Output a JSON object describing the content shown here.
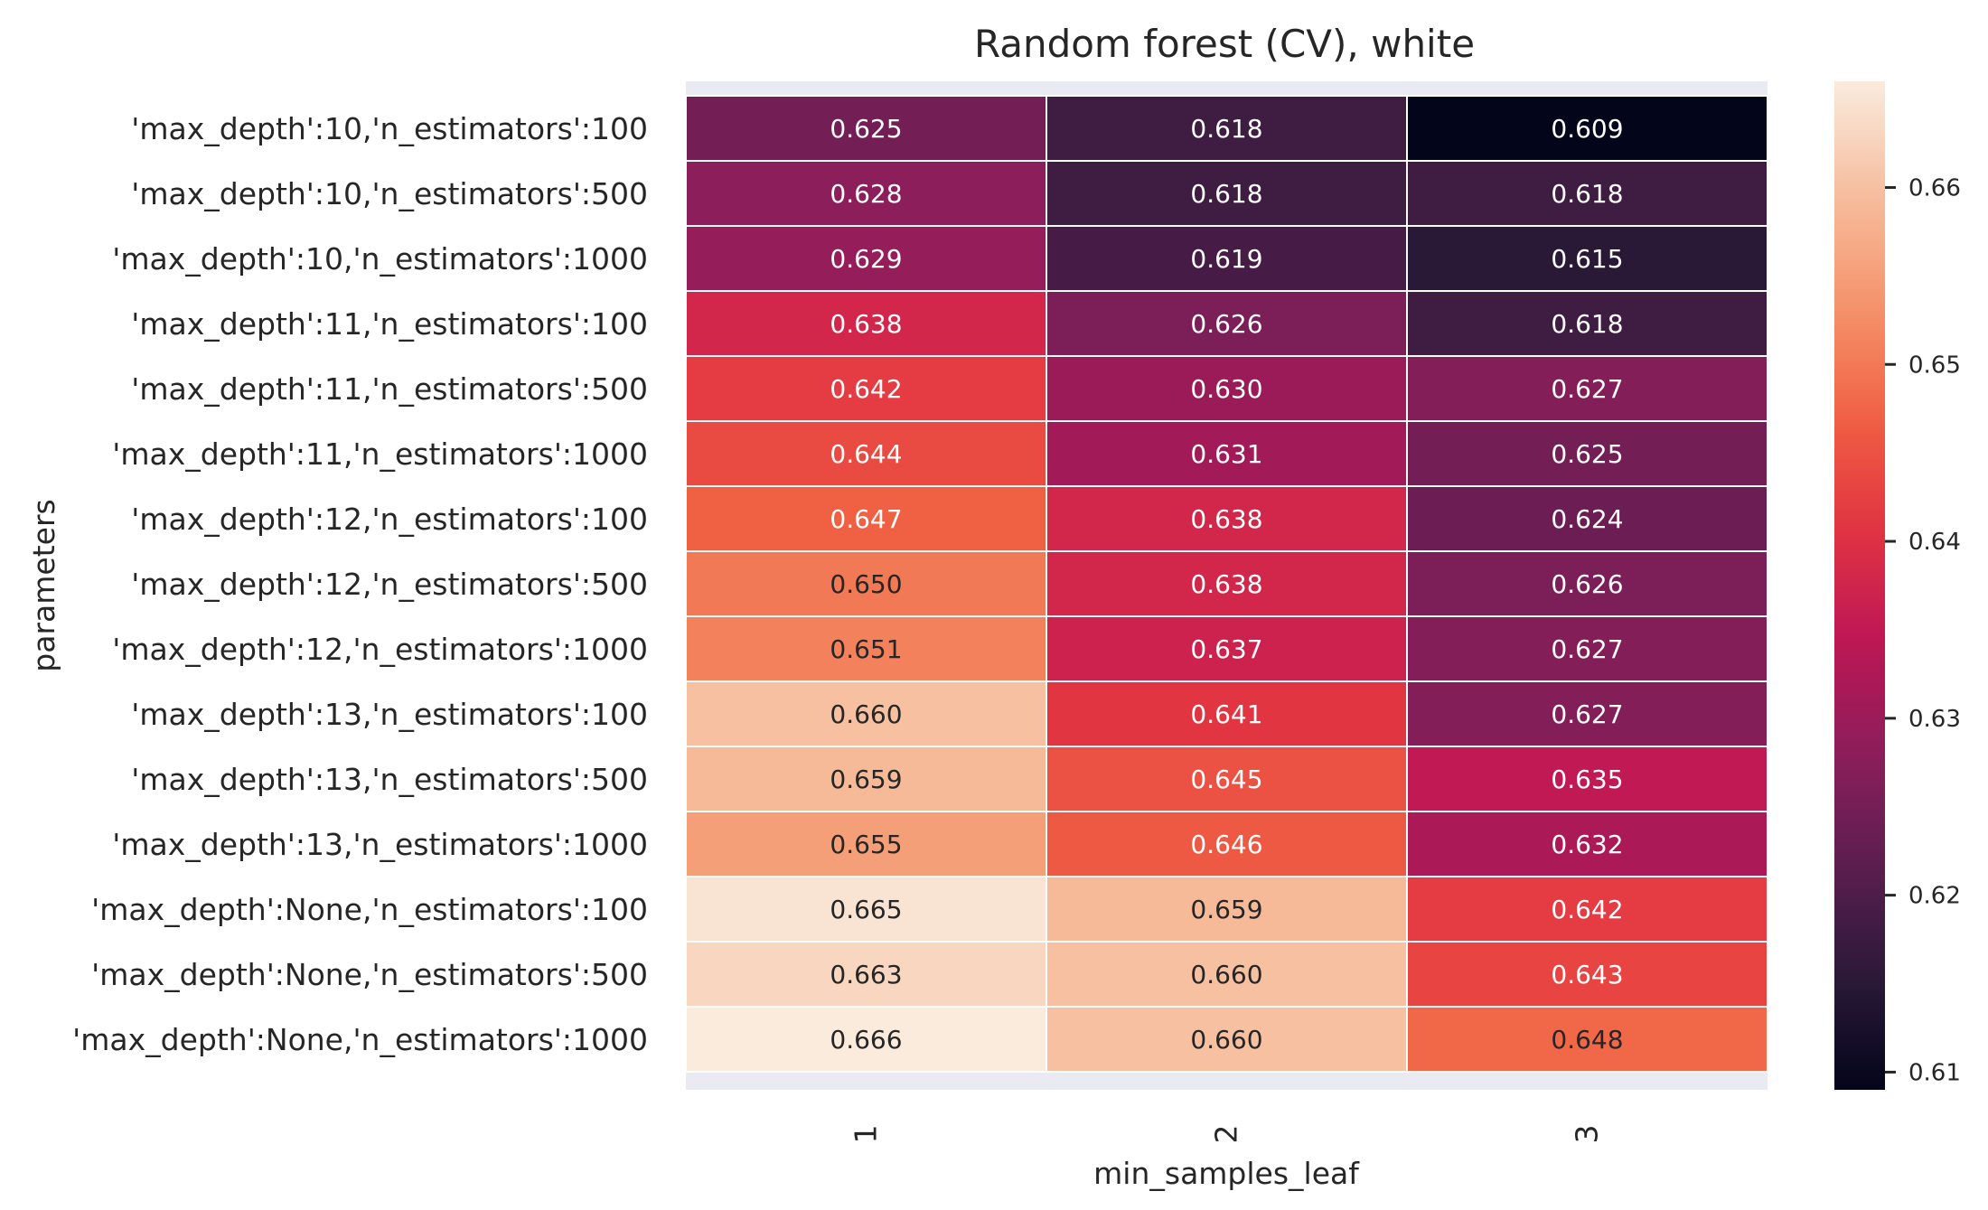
{
  "chart_data": {
    "type": "heatmap",
    "title": "Random forest (CV), white",
    "xlabel": "min_samples_leaf",
    "ylabel": "parameters",
    "x_categories": [
      "1",
      "2",
      "3"
    ],
    "y_categories": [
      "'max_depth':10,'n_estimators':100",
      "'max_depth':10,'n_estimators':500",
      "'max_depth':10,'n_estimators':1000",
      "'max_depth':11,'n_estimators':100",
      "'max_depth':11,'n_estimators':500",
      "'max_depth':11,'n_estimators':1000",
      "'max_depth':12,'n_estimators':100",
      "'max_depth':12,'n_estimators':500",
      "'max_depth':12,'n_estimators':1000",
      "'max_depth':13,'n_estimators':100",
      "'max_depth':13,'n_estimators':500",
      "'max_depth':13,'n_estimators':1000",
      "'max_depth':None,'n_estimators':100",
      "'max_depth':None,'n_estimators':500",
      "'max_depth':None,'n_estimators':1000"
    ],
    "values": [
      [
        0.625,
        0.618,
        0.609
      ],
      [
        0.628,
        0.618,
        0.618
      ],
      [
        0.629,
        0.619,
        0.615
      ],
      [
        0.638,
        0.626,
        0.618
      ],
      [
        0.642,
        0.63,
        0.627
      ],
      [
        0.644,
        0.631,
        0.625
      ],
      [
        0.647,
        0.638,
        0.624
      ],
      [
        0.65,
        0.638,
        0.626
      ],
      [
        0.651,
        0.637,
        0.627
      ],
      [
        0.66,
        0.641,
        0.627
      ],
      [
        0.659,
        0.645,
        0.635
      ],
      [
        0.655,
        0.646,
        0.632
      ],
      [
        0.665,
        0.659,
        0.642
      ],
      [
        0.663,
        0.66,
        0.643
      ],
      [
        0.666,
        0.66,
        0.648
      ]
    ],
    "cell_labels": [
      [
        "0.625",
        "0.618",
        "0.609"
      ],
      [
        "0.628",
        "0.618",
        "0.618"
      ],
      [
        "0.629",
        "0.619",
        "0.615"
      ],
      [
        "0.638",
        "0.626",
        "0.618"
      ],
      [
        "0.642",
        "0.630",
        "0.627"
      ],
      [
        "0.644",
        "0.631",
        "0.625"
      ],
      [
        "0.647",
        "0.638",
        "0.624"
      ],
      [
        "0.650",
        "0.638",
        "0.626"
      ],
      [
        "0.651",
        "0.637",
        "0.627"
      ],
      [
        "0.660",
        "0.641",
        "0.627"
      ],
      [
        "0.659",
        "0.645",
        "0.635"
      ],
      [
        "0.655",
        "0.646",
        "0.632"
      ],
      [
        "0.665",
        "0.659",
        "0.642"
      ],
      [
        "0.663",
        "0.660",
        "0.643"
      ],
      [
        "0.666",
        "0.660",
        "0.648"
      ]
    ],
    "colorbar": {
      "vmin": 0.609,
      "vmax": 0.666,
      "ticks": [
        0.61,
        0.62,
        0.63,
        0.64,
        0.65,
        0.66
      ],
      "tick_labels": [
        "0.61",
        "0.62",
        "0.63",
        "0.64",
        "0.65",
        "0.66"
      ]
    },
    "colormap": "rocket",
    "colormap_stops": [
      "#03051A",
      "#2B1A38",
      "#5A1E50",
      "#8C1E5B",
      "#BD1655",
      "#E13342",
      "#F06043",
      "#F5946B",
      "#F6BE9E",
      "#FAEBDD"
    ],
    "background_color": "#EAEAF2",
    "grid": false
  }
}
